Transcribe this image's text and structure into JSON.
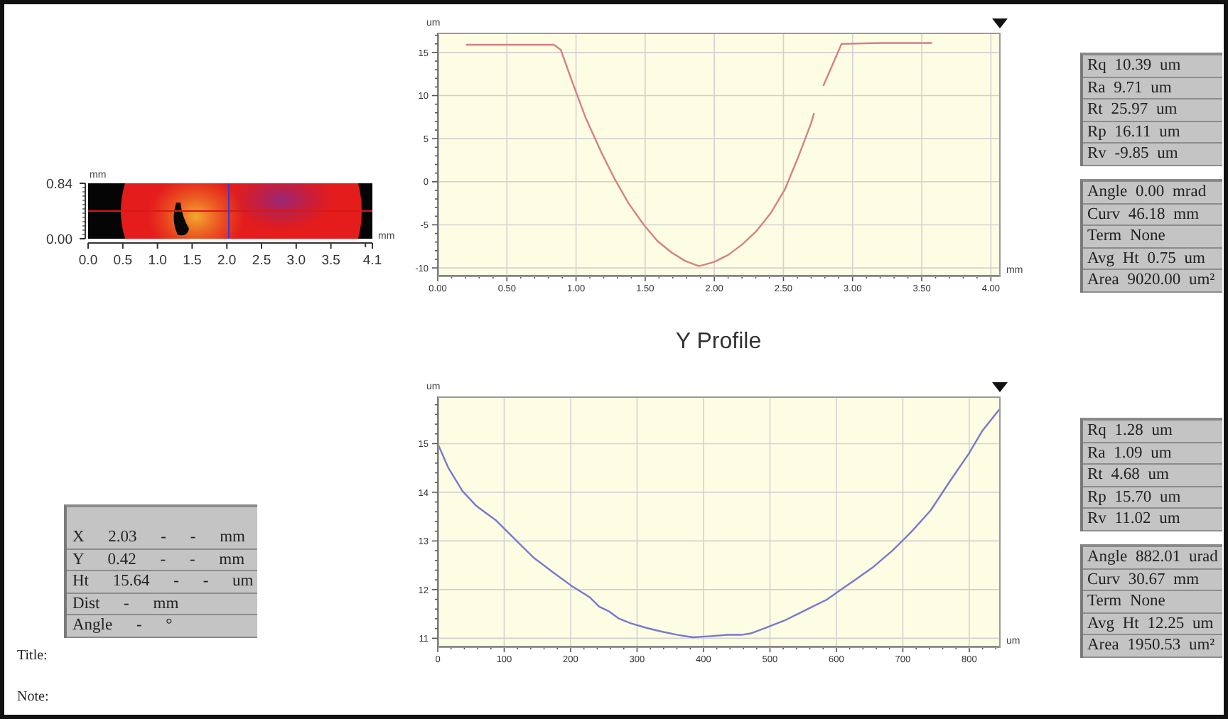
{
  "chart_data": [
    {
      "type": "other",
      "xlabel": "mm",
      "ylabel": "mm",
      "annotations": [
        "0.84",
        "0.00",
        "0.0",
        "0.5",
        "1.0",
        "1.5",
        "2.0",
        "2.5",
        "3.0",
        "3.5",
        "4.1",
        "X 2.03 - - mm",
        "Y 0.42 - - mm",
        "Ht 15.64 - - um",
        "Dist - mm",
        "Angle - °",
        "Title:",
        "Note:"
      ]
    },
    {
      "type": "line",
      "x": [
        0.21,
        0.5,
        0.84,
        0.89,
        0.97,
        1.07,
        1.18,
        1.28,
        1.38,
        1.49,
        1.59,
        1.69,
        1.79,
        1.89,
        2.0,
        2.1,
        2.2,
        2.3,
        2.41,
        2.51,
        2.61,
        2.7,
        2.72,
        2.76,
        2.79,
        2.85,
        2.92,
        3.2,
        3.57
      ],
      "values": [
        15.9,
        15.9,
        15.9,
        15.3,
        11.7,
        7.4,
        3.5,
        0.3,
        -2.5,
        -5.0,
        -6.9,
        -8.2,
        -9.2,
        -9.8,
        -9.3,
        -8.5,
        -7.3,
        -5.8,
        -3.6,
        -0.9,
        3.0,
        6.8,
        7.9,
        null,
        11.2,
        13.4,
        16.0,
        16.1,
        16.1
      ],
      "color": "#d88080",
      "xlim": [
        0,
        4.06
      ],
      "xticks": [
        {
          "value": 0,
          "label": "0.00"
        },
        {
          "value": 0.1,
          "label": null
        },
        {
          "value": 0.2,
          "label": null
        },
        {
          "value": 0.3,
          "label": null
        },
        {
          "value": 0.4,
          "label": null
        },
        {
          "value": 0.5,
          "label": "0.50"
        },
        {
          "value": 0.6,
          "label": null
        },
        {
          "value": 0.7,
          "label": null
        },
        {
          "value": 0.8,
          "label": null
        },
        {
          "value": 0.9,
          "label": null
        },
        {
          "value": 1,
          "label": "1.00"
        },
        {
          "value": 1.1,
          "label": null
        },
        {
          "value": 1.2,
          "label": null
        },
        {
          "value": 1.3,
          "label": null
        },
        {
          "value": 1.4,
          "label": null
        },
        {
          "value": 1.5,
          "label": "1.50"
        },
        {
          "value": 1.6,
          "label": null
        },
        {
          "value": 1.7,
          "label": null
        },
        {
          "value": 1.8,
          "label": null
        },
        {
          "value": 1.9,
          "label": null
        },
        {
          "value": 2,
          "label": "2.00"
        },
        {
          "value": 2.1,
          "label": null
        },
        {
          "value": 2.2,
          "label": null
        },
        {
          "value": 2.3,
          "label": null
        },
        {
          "value": 2.4,
          "label": null
        },
        {
          "value": 2.5,
          "label": "2.50"
        },
        {
          "value": 2.6,
          "label": null
        },
        {
          "value": 2.7,
          "label": null
        },
        {
          "value": 2.8,
          "label": null
        },
        {
          "value": 2.9,
          "label": null
        },
        {
          "value": 3,
          "label": "3.00"
        },
        {
          "value": 3.1,
          "label": null
        },
        {
          "value": 3.2,
          "label": null
        },
        {
          "value": 3.3,
          "label": null
        },
        {
          "value": 3.4,
          "label": null
        },
        {
          "value": 3.5,
          "label": "3.50"
        },
        {
          "value": 3.6,
          "label": null
        },
        {
          "value": 3.7,
          "label": null
        },
        {
          "value": 3.8,
          "label": null
        },
        {
          "value": 3.9,
          "label": null
        },
        {
          "value": 4,
          "label": "4.00"
        }
      ],
      "ylim": [
        -10.9,
        17.3
      ],
      "yticks": [
        -10,
        {
          "value": -9,
          "label": null
        },
        {
          "value": -8,
          "label": null
        },
        {
          "value": -7,
          "label": null
        },
        {
          "value": -6,
          "label": null
        },
        -5,
        {
          "value": -4,
          "label": null
        },
        {
          "value": -3,
          "label": null
        },
        {
          "value": -2,
          "label": null
        },
        {
          "value": -1,
          "label": null
        },
        0,
        {
          "value": 1,
          "label": null
        },
        {
          "value": 2,
          "label": null
        },
        {
          "value": 3,
          "label": null
        },
        {
          "value": 4,
          "label": null
        },
        5,
        {
          "value": 6,
          "label": null
        },
        {
          "value": 7,
          "label": null
        },
        {
          "value": 8,
          "label": null
        },
        {
          "value": 9,
          "label": null
        },
        10,
        {
          "value": 11,
          "label": null
        },
        {
          "value": 12,
          "label": null
        },
        {
          "value": 13,
          "label": null
        },
        {
          "value": 14,
          "label": null
        },
        15,
        {
          "value": 16,
          "label": null
        },
        {
          "value": 17,
          "label": null
        }
      ],
      "xlabel": "mm",
      "ylabel": "um",
      "grid": true,
      "annotations": [
        "Rq 10.39 um",
        "Ra 9.71 um",
        "Rt 25.97 um",
        "Rp 16.11 um",
        "Rv -9.85 um",
        "Angle 0.00 mrad",
        "Curv 46.18 mm",
        "Term None",
        "Avg Ht 0.75 um",
        "Area 9020.00 um²"
      ]
    },
    {
      "type": "line",
      "title": "Y Profile",
      "x": [
        0,
        16,
        37,
        58,
        87,
        115,
        144,
        172,
        201,
        229,
        243,
        258,
        272,
        290,
        315,
        336,
        361,
        384,
        407,
        436,
        457,
        471,
        493,
        521,
        542,
        564,
        585,
        606,
        628,
        656,
        685,
        713,
        742,
        770,
        799,
        820,
        845
      ],
      "values": [
        15.0,
        14.5,
        14.03,
        13.72,
        13.43,
        13.05,
        12.66,
        12.37,
        12.08,
        11.84,
        11.65,
        11.55,
        11.41,
        11.31,
        11.21,
        11.14,
        11.07,
        11.02,
        11.04,
        11.07,
        11.07,
        11.1,
        11.21,
        11.36,
        11.5,
        11.65,
        11.79,
        11.99,
        12.2,
        12.47,
        12.81,
        13.19,
        13.63,
        14.21,
        14.79,
        15.27,
        15.7
      ],
      "color": "#7878d0",
      "xlim": [
        0,
        845
      ],
      "xticks": [
        0,
        {
          "value": 20,
          "label": null
        },
        {
          "value": 40,
          "label": null
        },
        {
          "value": 60,
          "label": null
        },
        {
          "value": 80,
          "label": null
        },
        100,
        {
          "value": 120,
          "label": null
        },
        {
          "value": 140,
          "label": null
        },
        {
          "value": 160,
          "label": null
        },
        {
          "value": 180,
          "label": null
        },
        200,
        {
          "value": 220,
          "label": null
        },
        {
          "value": 240,
          "label": null
        },
        {
          "value": 260,
          "label": null
        },
        {
          "value": 280,
          "label": null
        },
        300,
        {
          "value": 320,
          "label": null
        },
        {
          "value": 340,
          "label": null
        },
        {
          "value": 360,
          "label": null
        },
        {
          "value": 380,
          "label": null
        },
        400,
        {
          "value": 420,
          "label": null
        },
        {
          "value": 440,
          "label": null
        },
        {
          "value": 460,
          "label": null
        },
        {
          "value": 480,
          "label": null
        },
        500,
        {
          "value": 520,
          "label": null
        },
        {
          "value": 540,
          "label": null
        },
        {
          "value": 560,
          "label": null
        },
        {
          "value": 580,
          "label": null
        },
        600,
        {
          "value": 620,
          "label": null
        },
        {
          "value": 640,
          "label": null
        },
        {
          "value": 660,
          "label": null
        },
        {
          "value": 680,
          "label": null
        },
        700,
        {
          "value": 720,
          "label": null
        },
        {
          "value": 740,
          "label": null
        },
        {
          "value": 760,
          "label": null
        },
        {
          "value": 780,
          "label": null
        },
        800,
        {
          "value": 820,
          "label": null
        },
        {
          "value": 840,
          "label": null
        }
      ],
      "ylim": [
        10.83,
        15.97
      ],
      "yticks": [
        11,
        {
          "value": 11.2,
          "label": null
        },
        {
          "value": 11.4,
          "label": null
        },
        {
          "value": 11.6,
          "label": null
        },
        {
          "value": 11.8,
          "label": null
        },
        12,
        {
          "value": 12.2,
          "label": null
        },
        {
          "value": 12.4,
          "label": null
        },
        {
          "value": 12.6,
          "label": null
        },
        {
          "value": 12.8,
          "label": null
        },
        13,
        {
          "value": 13.2,
          "label": null
        },
        {
          "value": 13.4,
          "label": null
        },
        {
          "value": 13.6,
          "label": null
        },
        {
          "value": 13.8,
          "label": null
        },
        14,
        {
          "value": 14.2,
          "label": null
        },
        {
          "value": 14.4,
          "label": null
        },
        {
          "value": 14.6,
          "label": null
        },
        {
          "value": 14.8,
          "label": null
        },
        15,
        {
          "value": 15.2,
          "label": null
        },
        {
          "value": 15.4,
          "label": null
        },
        {
          "value": 15.6,
          "label": null
        },
        {
          "value": 15.8,
          "label": null
        }
      ],
      "xlabel": "um",
      "ylabel": "um",
      "grid": true,
      "annotations": [
        "Rq 1.28 um",
        "Ra 1.09 um",
        "Rt 4.68 um",
        "Rp 15.70 um",
        "Rv 11.02 um",
        "Angle 882.01 urad",
        "Curv 30.67 mm",
        "Term None",
        "Avg Ht 12.25 um",
        "Area 1950.53 um²"
      ]
    }
  ]
}
